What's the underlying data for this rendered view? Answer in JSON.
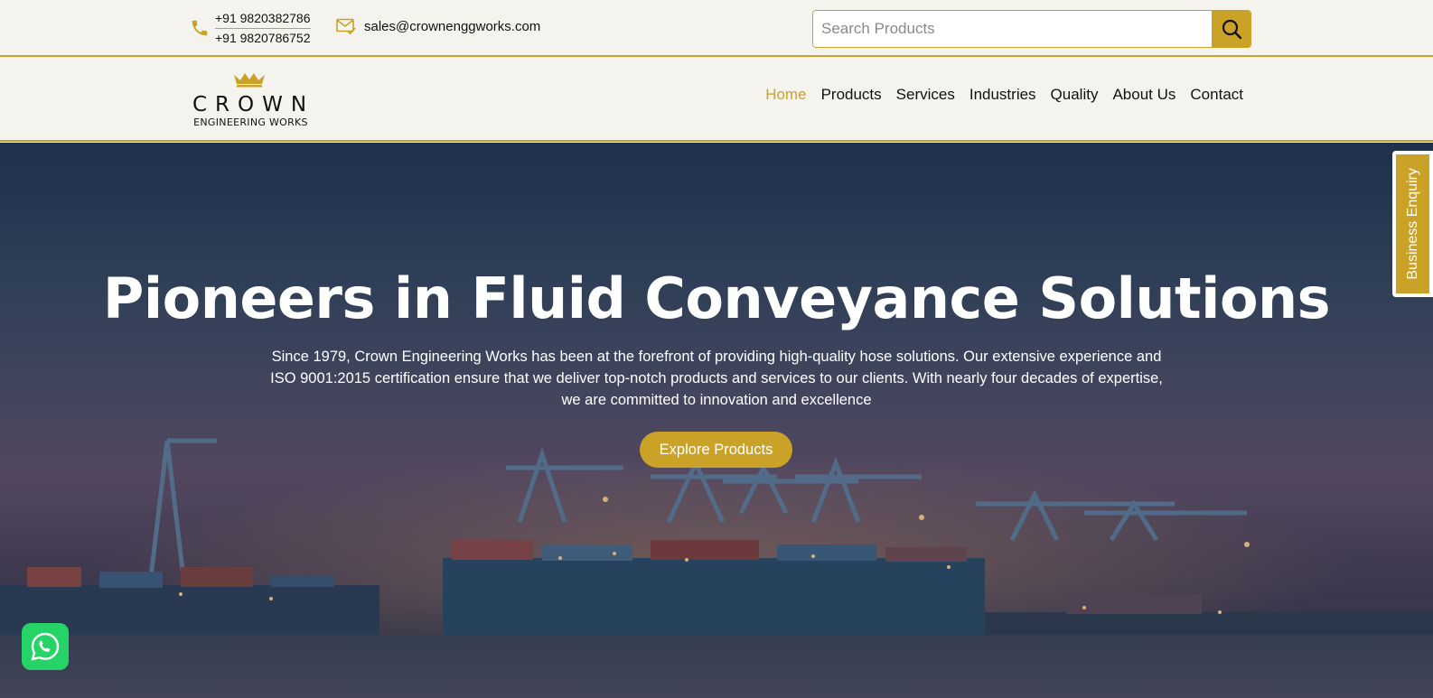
{
  "topbar": {
    "phones": [
      "+91 9820382786",
      "+91 9820786752"
    ],
    "email": "sales@crownenggworks.com",
    "search_placeholder": "Search Products",
    "icons": {
      "phone": "phone-icon",
      "mail": "mail-check-icon",
      "search": "search-icon"
    }
  },
  "logo": {
    "word": "CROWN",
    "sub": "ENGINEERING WORKS",
    "icon": "crown-icon"
  },
  "nav": {
    "items": [
      "Home",
      "Products",
      "Services",
      "Industries",
      "Quality",
      "About Us",
      "Contact"
    ],
    "active": "Home"
  },
  "hero": {
    "title": "Pioneers in Fluid Conveyance Solutions",
    "text": "Since 1979, Crown Engineering Works has been at the forefront of providing high-quality hose solutions. Our extensive experience and ISO 9001:2015 certification ensure that we deliver top-notch products and services to our clients. With nearly four decades of expertise, we are committed to innovation and excellence",
    "cta": "Explore Products"
  },
  "side_tab": {
    "label": "Business Enquiry"
  },
  "whatsapp": {
    "icon": "whatsapp-icon"
  },
  "colors": {
    "accent": "#c9a227",
    "background": "#f5f3ee",
    "whatsapp": "#25d366"
  }
}
